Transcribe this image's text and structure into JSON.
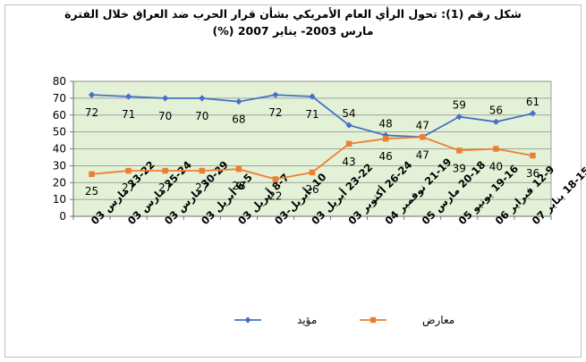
{
  "chart_data": {
    "type": "line",
    "title_line1": "شكل رقم (1): تحول الرأي العام الأمريكي بشأن قرار الحرب ضد العراق خلال الفترة",
    "title_line2": "مارس 2003- يناير 2007  (%)",
    "categories": [
      "23-22 مارس 03",
      "25-24 مارس 03",
      "30-29 مارس 03",
      "6-5 أبريل 03",
      "8-7 أبريل 03",
      "10 -أبريل-03",
      "23-22 أبريل 03",
      "26-24 أكتوبر 03",
      "21-19 نوفمبر 04",
      "20-18 مارس 05",
      "19-16 يونيو 05",
      "12-9 فبراير 06",
      "18-15 يناير 07"
    ],
    "series": [
      {
        "name": "مؤيد",
        "color": "#4472c4",
        "marker": "diamond",
        "values": [
          72,
          71,
          70,
          70,
          68,
          72,
          71,
          54,
          48,
          47,
          59,
          56,
          61
        ]
      },
      {
        "name": "معارض",
        "color": "#ed7d31",
        "marker": "square",
        "values": [
          25,
          27,
          27,
          27,
          28,
          22,
          26,
          43,
          46,
          47,
          39,
          40,
          36
        ]
      }
    ],
    "ylim": [
      0,
      80
    ],
    "yticks": [
      0,
      10,
      20,
      30,
      40,
      50,
      60,
      70,
      80
    ],
    "grid": true,
    "plot_background": "#e3f1d7",
    "legend_position": "bottom"
  }
}
